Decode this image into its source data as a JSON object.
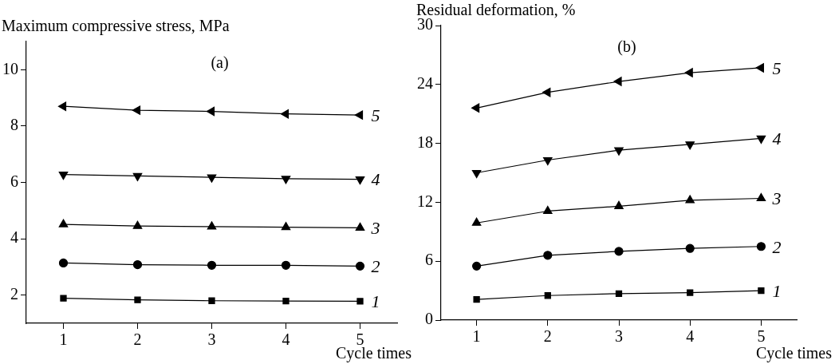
{
  "chart_data": [
    {
      "type": "line",
      "title": "(a)",
      "ylabel": "Maximum compressive stress, MPa",
      "xlabel": "Cycle times",
      "x": [
        1,
        2,
        3,
        4,
        5
      ],
      "xlim": [
        0.5,
        5.5
      ],
      "xticks": [
        1,
        2,
        3,
        4,
        5
      ],
      "ylim": [
        1,
        11
      ],
      "yticks": [
        2,
        4,
        6,
        8,
        10
      ],
      "grid": false,
      "legend": false,
      "line_style": "solid",
      "series": [
        {
          "name": "1",
          "color": "#000000",
          "marker": "square",
          "values": [
            1.89,
            1.83,
            1.8,
            1.79,
            1.78
          ]
        },
        {
          "name": "2",
          "color": "#000000",
          "marker": "circle",
          "values": [
            3.14,
            3.08,
            3.06,
            3.06,
            3.03
          ]
        },
        {
          "name": "3",
          "color": "#000000",
          "marker": "triangle",
          "values": [
            4.51,
            4.45,
            4.43,
            4.41,
            4.39
          ]
        },
        {
          "name": "4",
          "color": "#000000",
          "marker": "triangle_down",
          "values": [
            6.28,
            6.23,
            6.18,
            6.13,
            6.11
          ]
        },
        {
          "name": "5",
          "color": "#000000",
          "marker": "triangle_left",
          "values": [
            8.7,
            8.56,
            8.52,
            8.43,
            8.39
          ]
        }
      ]
    },
    {
      "type": "line",
      "title": "(b)",
      "ylabel": "Residual deformation, %",
      "xlabel": "Cycle times",
      "x": [
        1,
        2,
        3,
        4,
        5
      ],
      "xlim": [
        0.5,
        5.5
      ],
      "xticks": [
        1,
        2,
        3,
        4,
        5
      ],
      "ylim": [
        0,
        30
      ],
      "yticks": [
        0,
        6,
        12,
        18,
        24,
        30
      ],
      "grid": false,
      "legend": false,
      "line_style": "solid",
      "series": [
        {
          "name": "1",
          "color": "#000000",
          "marker": "square",
          "values": [
            2.1,
            2.5,
            2.7,
            2.8,
            3.0
          ]
        },
        {
          "name": "2",
          "color": "#000000",
          "marker": "circle",
          "values": [
            5.5,
            6.6,
            7.0,
            7.3,
            7.5
          ]
        },
        {
          "name": "3",
          "color": "#000000",
          "marker": "triangle",
          "values": [
            9.9,
            11.1,
            11.6,
            12.2,
            12.4
          ]
        },
        {
          "name": "4",
          "color": "#000000",
          "marker": "triangle_down",
          "values": [
            15.0,
            16.3,
            17.3,
            17.9,
            18.5
          ]
        },
        {
          "name": "5",
          "color": "#000000",
          "marker": "triangle_left",
          "values": [
            21.6,
            23.2,
            24.3,
            25.2,
            25.7
          ]
        }
      ]
    }
  ]
}
